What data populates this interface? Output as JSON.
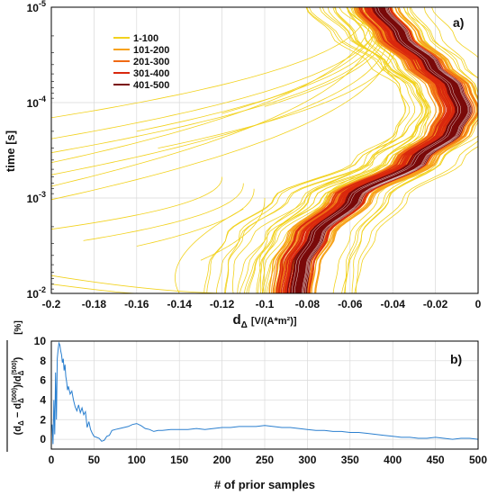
{
  "chart_data": [
    {
      "type": "line",
      "panel_label": "a)",
      "xlabel": "d",
      "xlabel_sub": "Δ",
      "xlabel_units": "[V/(A*m²)]",
      "ylabel": "time [s]",
      "xlim": [
        -0.2,
        0
      ],
      "ylim": [
        1e-05,
        0.01
      ],
      "yscale": "log",
      "y_inverted": true,
      "x_ticks": [
        "-0.2",
        "-0.18",
        "-0.16",
        "-0.14",
        "-0.12",
        "-0.1",
        "-0.08",
        "-0.06",
        "-0.04",
        "-0.02",
        "0"
      ],
      "y_ticks": [
        {
          "base": "10",
          "exp": "-5"
        },
        {
          "base": "10",
          "exp": "-4"
        },
        {
          "base": "10",
          "exp": "-3"
        },
        {
          "base": "10",
          "exp": "-2"
        }
      ],
      "grid": true,
      "legend_position": "top-left",
      "series": [
        {
          "name": "1-100",
          "color": "#f2d21e",
          "count": 100
        },
        {
          "name": "101-200",
          "color": "#f7a21c",
          "count": 100
        },
        {
          "name": "201-300",
          "color": "#f06a14",
          "count": 100
        },
        {
          "name": "301-400",
          "color": "#d9280e",
          "count": 100
        },
        {
          "name": "401-500",
          "color": "#7a0a0a",
          "count": 100
        }
      ],
      "central_curve": {
        "time": [
          1e-05,
          2e-05,
          4e-05,
          7e-05,
          0.00012,
          0.0002,
          0.0004,
          0.001,
          0.0025,
          0.005,
          0.01
        ],
        "d": [
          -0.048,
          -0.038,
          -0.024,
          -0.013,
          -0.009,
          -0.014,
          -0.03,
          -0.06,
          -0.078,
          -0.085,
          -0.087
        ]
      },
      "outlier_curves": [
        {
          "t0": 0.00025,
          "d0": -0.205,
          "t1": 1.2e-05,
          "d1": -0.046
        },
        {
          "t0": 0.00035,
          "d0": -0.205,
          "t1": 1.5e-05,
          "d1": -0.044
        },
        {
          "t0": 0.00045,
          "d0": -0.205,
          "t1": 1.1e-05,
          "d1": -0.05
        },
        {
          "t0": 0.0006,
          "d0": -0.205,
          "t1": 1.8e-05,
          "d1": -0.042
        },
        {
          "t0": 0.0008,
          "d0": -0.205,
          "t1": 1.3e-05,
          "d1": -0.048
        },
        {
          "t0": 0.0011,
          "d0": -0.205,
          "t1": 2e-05,
          "d1": -0.04
        },
        {
          "t0": 0.00015,
          "d0": -0.205,
          "t1": 1e-05,
          "d1": -0.052
        },
        {
          "t0": 0.0002,
          "d0": -0.16,
          "t1": 1.4e-05,
          "d1": -0.045
        },
        {
          "t0": 0.00013,
          "d0": -0.12,
          "t1": 1.2e-05,
          "d1": -0.047
        },
        {
          "t0": 0.0003,
          "d0": -0.15,
          "t1": 2.2e-05,
          "d1": -0.038
        },
        {
          "t0": 0.00011,
          "d0": -0.1,
          "t1": 1.6e-05,
          "d1": -0.043
        },
        {
          "t0": 0.0022,
          "d0": -0.205,
          "t1": 0.0006,
          "d1": -0.12
        },
        {
          "t0": 0.0028,
          "d0": -0.185,
          "t1": 0.0007,
          "d1": -0.11
        },
        {
          "t0": 0.0032,
          "d0": -0.16,
          "t1": 0.0008,
          "d1": -0.105
        },
        {
          "t0": 0.0045,
          "d0": -0.13,
          "t1": 0.001,
          "d1": -0.1
        }
      ],
      "bottom_curves": [
        {
          "t0": 0.0065,
          "d0": -0.2,
          "tmid": 0.0095,
          "dmid": -0.155,
          "t1": 0.01,
          "d1": -0.12
        },
        {
          "t0": 0.008,
          "d0": -0.2,
          "tmid": 0.0098,
          "dmid": -0.17,
          "t1": 0.01,
          "d1": -0.16
        },
        {
          "t0": 0.01,
          "d0": -0.14,
          "tmid": 0.004,
          "dmid": -0.15,
          "t1": 0.0013,
          "d1": -0.11
        }
      ]
    },
    {
      "type": "line",
      "panel_label": "b)",
      "xlabel": "# of prior samples",
      "ylabel_units": "[%]",
      "xlim": [
        0,
        500
      ],
      "ylim": [
        -1,
        10
      ],
      "x_ticks": [
        "0",
        "50",
        "100",
        "150",
        "200",
        "250",
        "300",
        "350",
        "400",
        "450",
        "500"
      ],
      "y_ticks": [
        "0",
        "2",
        "4",
        "6",
        "8",
        "10"
      ],
      "grid": true,
      "series": [
        {
          "color": "#2a7fcf",
          "x": [
            1,
            2,
            3,
            4,
            5,
            6,
            7,
            8,
            9,
            10,
            11,
            12,
            13,
            14,
            15,
            16,
            17,
            18,
            19,
            20,
            22,
            24,
            26,
            28,
            30,
            32,
            34,
            36,
            38,
            40,
            42,
            44,
            46,
            48,
            50,
            53,
            56,
            59,
            62,
            65,
            68,
            71,
            75,
            80,
            85,
            90,
            95,
            100,
            105,
            110,
            115,
            120,
            125,
            130,
            140,
            150,
            160,
            170,
            180,
            190,
            200,
            210,
            220,
            230,
            240,
            250,
            260,
            270,
            280,
            290,
            300,
            310,
            320,
            330,
            340,
            350,
            360,
            370,
            380,
            390,
            400,
            410,
            420,
            430,
            440,
            450,
            460,
            470,
            480,
            490,
            500
          ],
          "y": [
            1.5,
            -0.5,
            4.0,
            0.5,
            6.8,
            2.0,
            8.2,
            9.2,
            9.8,
            9.6,
            9.0,
            8.6,
            7.8,
            8.2,
            7.0,
            7.6,
            6.4,
            5.8,
            5.0,
            5.4,
            4.6,
            4.9,
            4.0,
            3.3,
            2.9,
            3.5,
            2.7,
            3.2,
            2.5,
            2.8,
            1.2,
            1.8,
            1.0,
            0.6,
            0.3,
            0.2,
            0.1,
            -0.2,
            -0.1,
            0.3,
            0.4,
            0.9,
            1.0,
            1.1,
            1.2,
            1.3,
            1.5,
            1.6,
            1.4,
            1.1,
            1.0,
            0.8,
            0.9,
            0.9,
            1.0,
            1.0,
            1.0,
            1.1,
            1.0,
            1.1,
            1.2,
            1.2,
            1.3,
            1.3,
            1.3,
            1.4,
            1.3,
            1.2,
            1.2,
            1.1,
            1.0,
            0.9,
            0.9,
            0.8,
            0.8,
            0.7,
            0.7,
            0.6,
            0.5,
            0.4,
            0.3,
            0.2,
            0.2,
            0.1,
            0.1,
            0.2,
            0.1,
            0.0,
            0.1,
            0.1,
            0.0
          ]
        }
      ]
    }
  ]
}
